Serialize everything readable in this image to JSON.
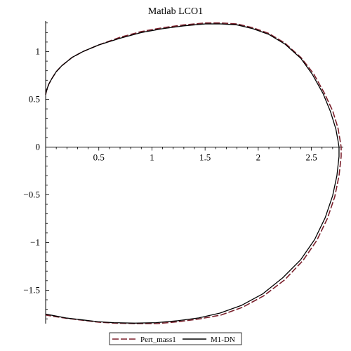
{
  "chart_data": {
    "type": "line",
    "title": "Matlab LCO1",
    "xlabel": "",
    "ylabel": "",
    "xlim": [
      -0.02,
      2.8
    ],
    "ylim": [
      -1.85,
      1.32
    ],
    "x_ticks": [
      0.5,
      1,
      1.5,
      2,
      2.5
    ],
    "x_tick_labels": [
      "0.5",
      "1",
      "1.5",
      "2",
      "2.5"
    ],
    "y_ticks": [
      1,
      0.5,
      0,
      -0.5,
      -1,
      -1.5
    ],
    "y_tick_labels": [
      "1",
      "0.5",
      "0",
      "−0.5",
      "−1",
      "−1.5"
    ],
    "grid": false,
    "legend_position": "bottom-center",
    "series": [
      {
        "name": "Pert_mass1",
        "color": "#7a1f2b",
        "style": "dashed",
        "x": [
          0.0,
          0.01,
          0.03,
          0.06,
          0.1,
          0.15,
          0.25,
          0.35,
          0.5,
          0.7,
          0.9,
          1.1,
          1.3,
          1.5,
          1.65,
          1.8,
          1.95,
          2.1,
          2.25,
          2.4,
          2.52,
          2.62,
          2.7,
          2.75,
          2.77,
          2.78,
          2.78,
          2.76,
          2.72,
          2.65,
          2.55,
          2.42,
          2.25,
          2.05,
          1.85,
          1.65,
          1.45,
          1.25,
          1.05,
          0.85,
          0.65,
          0.5,
          0.35,
          0.2,
          0.08,
          0.0
        ],
        "y": [
          0.55,
          0.6,
          0.66,
          0.72,
          0.79,
          0.85,
          0.94,
          1.0,
          1.07,
          1.15,
          1.21,
          1.25,
          1.28,
          1.3,
          1.3,
          1.29,
          1.25,
          1.19,
          1.09,
          0.94,
          0.77,
          0.57,
          0.38,
          0.2,
          0.07,
          0.0,
          -0.1,
          -0.3,
          -0.52,
          -0.75,
          -0.98,
          -1.19,
          -1.39,
          -1.56,
          -1.68,
          -1.76,
          -1.8,
          -1.83,
          -1.85,
          -1.85,
          -1.845,
          -1.835,
          -1.815,
          -1.795,
          -1.775,
          -1.76
        ]
      },
      {
        "name": "M1-DN",
        "color": "#000000",
        "style": "solid",
        "x": [
          0.0,
          0.01,
          0.03,
          0.06,
          0.1,
          0.15,
          0.25,
          0.35,
          0.5,
          0.7,
          0.9,
          1.1,
          1.3,
          1.5,
          1.65,
          1.8,
          1.95,
          2.1,
          2.25,
          2.4,
          2.51,
          2.61,
          2.68,
          2.73,
          2.75,
          2.76,
          2.76,
          2.74,
          2.7,
          2.63,
          2.53,
          2.4,
          2.23,
          2.04,
          1.84,
          1.64,
          1.44,
          1.24,
          1.04,
          0.84,
          0.64,
          0.49,
          0.34,
          0.19,
          0.07,
          0.0
        ],
        "y": [
          0.55,
          0.6,
          0.66,
          0.72,
          0.79,
          0.85,
          0.94,
          1.0,
          1.07,
          1.14,
          1.2,
          1.24,
          1.27,
          1.29,
          1.29,
          1.28,
          1.24,
          1.18,
          1.08,
          0.93,
          0.76,
          0.56,
          0.37,
          0.19,
          0.07,
          0.0,
          -0.1,
          -0.3,
          -0.51,
          -0.74,
          -0.97,
          -1.18,
          -1.37,
          -1.54,
          -1.66,
          -1.74,
          -1.79,
          -1.82,
          -1.84,
          -1.845,
          -1.84,
          -1.83,
          -1.81,
          -1.79,
          -1.765,
          -1.75
        ]
      }
    ]
  }
}
